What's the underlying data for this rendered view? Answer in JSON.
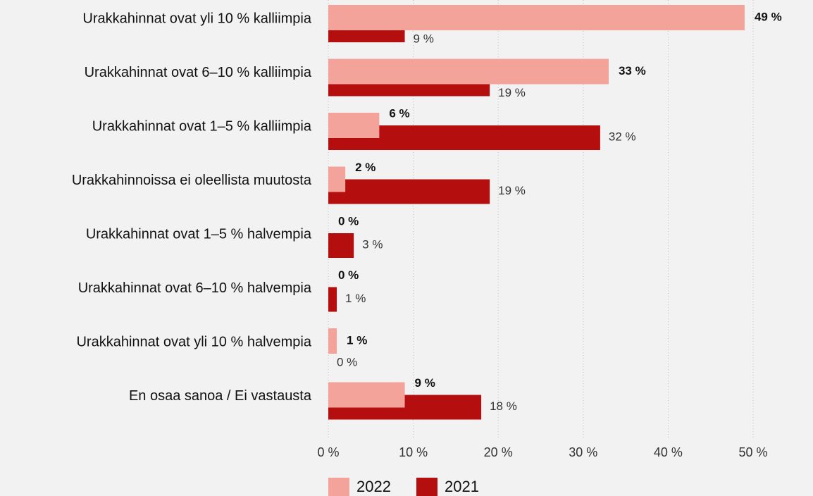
{
  "chart_data": {
    "type": "bar",
    "orientation": "horizontal",
    "categories": [
      "Urakkahinnat ovat yli 10 % kalliimpia",
      "Urakkahinnat ovat 6–10 % kalliimpia",
      "Urakkahinnat ovat 1–5 % kalliimpia",
      "Urakkahinnoissa ei oleellista muutosta",
      "Urakkahinnat ovat 1–5 % halvempia",
      "Urakkahinnat ovat 6–10 % halvempia",
      "Urakkahinnat ovat yli 10 % halvempia",
      "En osaa sanoa / Ei vastausta"
    ],
    "series": [
      {
        "name": "2022",
        "color": "#f4a39a",
        "values": [
          49,
          33,
          6,
          2,
          0,
          0,
          1,
          9
        ],
        "value_labels": [
          "49 %",
          "33 %",
          "6 %",
          "2 %",
          "0 %",
          "0 %",
          "1 %",
          "9 %"
        ]
      },
      {
        "name": "2021",
        "color": "#b50e0e",
        "values": [
          9,
          19,
          32,
          19,
          3,
          1,
          0,
          18
        ],
        "value_labels": [
          "9 %",
          "19 %",
          "32 %",
          "19 %",
          "3 %",
          "1 %",
          "0 %",
          "18 %"
        ]
      }
    ],
    "xlim": [
      0,
      50
    ],
    "xticks": [
      {
        "value": 0,
        "label": "0 %"
      },
      {
        "value": 10,
        "label": "10 %"
      },
      {
        "value": 20,
        "label": "20 %"
      },
      {
        "value": 30,
        "label": "30 %"
      },
      {
        "value": 40,
        "label": "40 %"
      },
      {
        "value": 50,
        "label": "50 %"
      }
    ],
    "grid": true,
    "legend": "bottom"
  }
}
